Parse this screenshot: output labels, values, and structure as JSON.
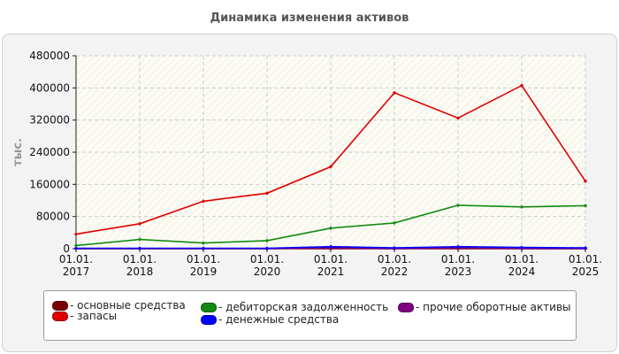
{
  "chart_data": {
    "type": "line",
    "title": "Динамика изменения активов",
    "ylabel": "тыс.",
    "xlabel": "",
    "categories": [
      "01.01.\n2017",
      "01.01.\n2018",
      "01.01.\n2019",
      "01.01.\n2020",
      "01.01.\n2021",
      "01.01.\n2022",
      "01.01.\n2023",
      "01.01.\n2024",
      "01.01.\n2025"
    ],
    "ylim": [
      0,
      480000
    ],
    "yticks": [
      "0",
      "80000",
      "160000",
      "240000",
      "320000",
      "400000",
      "480000"
    ],
    "grid": true,
    "legend_position": "bottom",
    "series": [
      {
        "name": "основные средства",
        "color": "#7a0000",
        "values": [
          0,
          0,
          0,
          0,
          0,
          0,
          0,
          0,
          0
        ]
      },
      {
        "name": "запасы",
        "color": "#e00000",
        "values": [
          36000,
          62000,
          118000,
          138000,
          204000,
          388000,
          325000,
          406000,
          168000
        ]
      },
      {
        "name": "дебиторская задолженность",
        "color": "#138a13",
        "values": [
          8000,
          23000,
          14000,
          20000,
          51000,
          64000,
          108000,
          104000,
          107000
        ]
      },
      {
        "name": "денежные средства",
        "color": "#0000ff",
        "values": [
          1000,
          1000,
          1000,
          1000,
          5000,
          2000,
          5000,
          3000,
          2000
        ]
      },
      {
        "name": "прочие оборотные активы",
        "color": "#800080",
        "values": [
          0,
          0,
          0,
          0,
          2000,
          0,
          2000,
          0,
          0
        ]
      }
    ]
  }
}
